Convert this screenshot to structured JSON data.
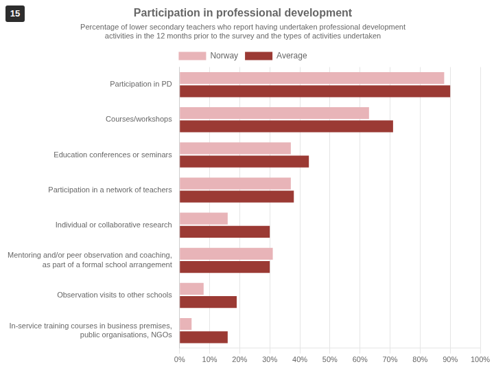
{
  "chart_data": {
    "type": "bar",
    "orientation": "horizontal",
    "title": "Participation in professional development",
    "subtitle": "Percentage of lower secondary teachers who report having undertaken professional development\nactivities in the 12 months prior to the survey and the types of activities undertaken",
    "annotations": [
      "15"
    ],
    "categories": [
      "Participation in PD",
      "Courses/workshops",
      "Education conferences or seminars",
      "Participation in a network of teachers",
      "Individual or collaborative research",
      "Mentoring and/or peer observation and coaching,\nas part of a formal school arrangement",
      "Observation visits to other schools",
      "In-service training courses in business premises,\npublic organisations, NGOs"
    ],
    "series": [
      {
        "name": "Norway",
        "color": "#e8b4b8",
        "values": [
          88,
          63,
          37,
          37,
          16,
          31,
          8,
          4
        ]
      },
      {
        "name": "Average",
        "color": "#9b3a34",
        "values": [
          90,
          71,
          43,
          38,
          30,
          30,
          19,
          16
        ]
      }
    ],
    "xlim": [
      0,
      100
    ],
    "xticks": [
      {
        "value": 0,
        "label": "0%"
      },
      {
        "value": 10,
        "label": "10%"
      },
      {
        "value": 20,
        "label": "20%"
      },
      {
        "value": 30,
        "label": "30%"
      },
      {
        "value": 40,
        "label": "40%"
      },
      {
        "value": 50,
        "label": "50%"
      },
      {
        "value": 60,
        "label": "60%"
      },
      {
        "value": 70,
        "label": "70%"
      },
      {
        "value": 80,
        "label": "80%"
      },
      {
        "value": 90,
        "label": "90%"
      },
      {
        "value": 100,
        "label": "100%"
      }
    ],
    "grid": true,
    "legend": "top"
  }
}
